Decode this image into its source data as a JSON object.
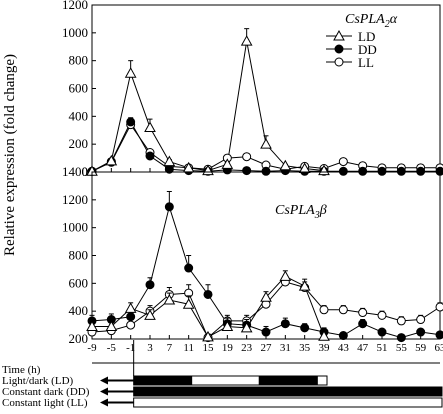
{
  "figure": {
    "ylabel": "Relative expression (fold change)",
    "x_ticks": [
      -9,
      -5,
      -1,
      3,
      7,
      11,
      15,
      19,
      23,
      27,
      31,
      35,
      39,
      43,
      47,
      51,
      55,
      59,
      63
    ],
    "rows": {
      "time_label": "Time (h)",
      "ld_label": "Light/dark (LD)",
      "dd_label": "Constant dark (DD)",
      "ll_label": "Constant light (LL)"
    },
    "light_schedule": {
      "ld": [
        {
          "start": -1,
          "end": 11,
          "state": "dark"
        },
        {
          "start": 11,
          "end": 25,
          "state": "light"
        },
        {
          "start": 25,
          "end": 37,
          "state": "dark"
        },
        {
          "start": 37,
          "end": 39,
          "state": "light"
        }
      ],
      "dd": [
        {
          "start": -1,
          "end": 63,
          "state": "dark"
        }
      ],
      "ll": [
        {
          "start": -1,
          "end": 63,
          "state": "light"
        }
      ],
      "colors": {
        "dark": "#000000",
        "light": "#ffffff"
      }
    }
  },
  "chart_data": [
    {
      "type": "line",
      "title": "CsPLA2α",
      "title_main": "CsPLA",
      "title_sub": "2",
      "title_suffix": "α",
      "x": [
        -9,
        -5,
        -1,
        3,
        7,
        11,
        15,
        19,
        23,
        27,
        31,
        35,
        39,
        43,
        47,
        51,
        55,
        59,
        63
      ],
      "ylim": [
        0,
        1200
      ],
      "y_ticks": [
        0,
        200,
        400,
        600,
        800,
        1000,
        1200
      ],
      "legend_position": "top-right",
      "series": [
        {
          "name": "LD",
          "marker": "triangle",
          "values": [
            5,
            80,
            710,
            320,
            75,
            30,
            10,
            55,
            940,
            200,
            45,
            25,
            10,
            null,
            null,
            null,
            null,
            null,
            null
          ],
          "errors": [
            0,
            10,
            90,
            60,
            15,
            8,
            5,
            15,
            90,
            60,
            10,
            8,
            5,
            null,
            null,
            null,
            null,
            null,
            null
          ]
        },
        {
          "name": "DD",
          "marker": "filled-circle",
          "values": [
            5,
            75,
            360,
            115,
            20,
            10,
            5,
            15,
            10,
            5,
            10,
            5,
            5,
            5,
            5,
            5,
            5,
            5,
            5
          ],
          "errors": [
            0,
            10,
            30,
            20,
            5,
            5,
            3,
            5,
            5,
            3,
            3,
            3,
            3,
            3,
            3,
            3,
            3,
            3,
            3
          ]
        },
        {
          "name": "LL",
          "marker": "open-circle",
          "values": [
            5,
            70,
            340,
            140,
            40,
            30,
            20,
            100,
            110,
            50,
            20,
            40,
            25,
            75,
            45,
            30,
            30,
            30,
            30
          ],
          "errors": [
            0,
            10,
            25,
            20,
            10,
            8,
            5,
            20,
            20,
            10,
            5,
            8,
            5,
            10,
            8,
            5,
            5,
            5,
            5
          ]
        }
      ]
    },
    {
      "type": "line",
      "title": "CsPLA3β",
      "title_main": "CsPLA",
      "title_sub": "3",
      "title_suffix": "β",
      "x": [
        -9,
        -5,
        -1,
        3,
        7,
        11,
        15,
        19,
        23,
        27,
        31,
        35,
        39,
        43,
        47,
        51,
        55,
        59,
        63
      ],
      "ylim": [
        200,
        1400
      ],
      "y_ticks": [
        200,
        400,
        600,
        800,
        1000,
        1200,
        1400
      ],
      "series": [
        {
          "name": "LD",
          "marker": "triangle",
          "values": [
            290,
            290,
            420,
            370,
            480,
            450,
            215,
            290,
            280,
            500,
            650,
            580,
            220,
            null,
            null,
            null,
            null,
            null,
            null
          ],
          "errors": [
            30,
            30,
            40,
            40,
            50,
            60,
            20,
            30,
            30,
            40,
            40,
            50,
            20,
            null,
            null,
            null,
            null,
            null,
            null
          ]
        },
        {
          "name": "DD",
          "marker": "filled-circle",
          "values": [
            330,
            340,
            360,
            590,
            1150,
            710,
            520,
            310,
            300,
            250,
            310,
            280,
            250,
            225,
            310,
            250,
            210,
            250,
            230
          ],
          "errors": [
            40,
            40,
            40,
            50,
            110,
            90,
            70,
            40,
            40,
            40,
            40,
            30,
            30,
            20,
            30,
            20,
            20,
            20,
            20
          ]
        },
        {
          "name": "LL",
          "marker": "open-circle",
          "values": [
            250,
            260,
            300,
            400,
            520,
            530,
            210,
            330,
            330,
            450,
            610,
            570,
            410,
            410,
            390,
            370,
            330,
            340,
            430
          ],
          "errors": [
            30,
            30,
            40,
            40,
            50,
            60,
            20,
            40,
            40,
            40,
            40,
            40,
            30,
            30,
            30,
            30,
            30,
            30,
            30
          ]
        }
      ]
    }
  ]
}
